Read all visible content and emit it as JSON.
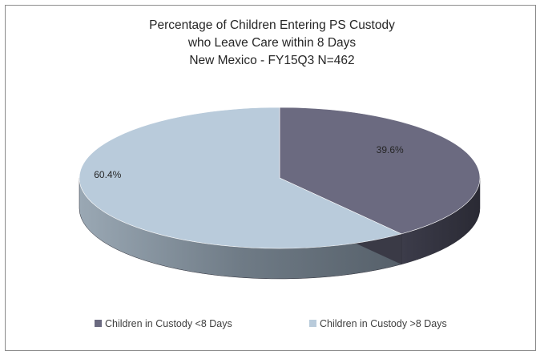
{
  "chart_data": {
    "type": "pie",
    "style": "3d",
    "title_lines": [
      "Percentage of Children Entering PS Custody",
      "who Leave Care within 8 Days",
      "New Mexico - FY15Q3    N=462"
    ],
    "categories": [
      "Children in Custody <8 Days",
      "Children in Custody >8 Days"
    ],
    "values": [
      39.6,
      60.4
    ],
    "data_labels": [
      "39.6%",
      "60.4%"
    ],
    "colors": [
      "#6b6a80",
      "#b9cbdb"
    ],
    "legend_position": "bottom"
  }
}
